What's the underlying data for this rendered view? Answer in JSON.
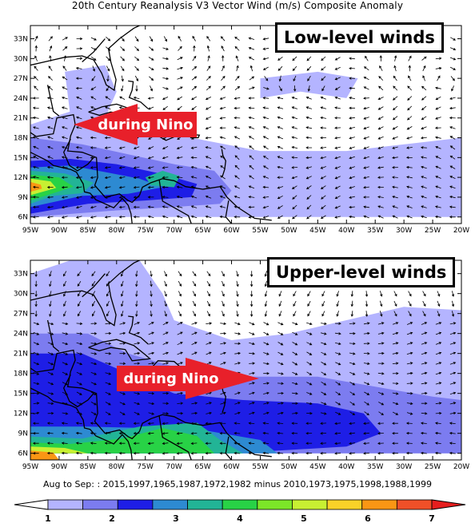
{
  "title": "20th Century Reanalysis V3 Vector Wind (m/s) Composite Anomaly",
  "panels": [
    {
      "id": "low",
      "box_label": "Low-level winds",
      "arrow_label": "during Nino",
      "arrow_direction": "west"
    },
    {
      "id": "upper",
      "box_label": "Upper-level winds",
      "arrow_label": "during Nino",
      "arrow_direction": "east"
    }
  ],
  "axes": {
    "lat_labels": [
      "33N",
      "30N",
      "27N",
      "24N",
      "21N",
      "18N",
      "15N",
      "12N",
      "9N",
      "6N"
    ],
    "lat_values": [
      33,
      30,
      27,
      24,
      21,
      18,
      15,
      12,
      9,
      6
    ],
    "lon_labels": [
      "95W",
      "90W",
      "85W",
      "80W",
      "75W",
      "70W",
      "65W",
      "60W",
      "55W",
      "50W",
      "45W",
      "40W",
      "35W",
      "30W",
      "25W",
      "20W"
    ],
    "lon_values": [
      -95,
      -90,
      -85,
      -80,
      -75,
      -70,
      -65,
      -60,
      -55,
      -50,
      -45,
      -40,
      -35,
      -30,
      -25,
      -20
    ]
  },
  "footer": "Aug to Sep: : 2015,1997,1965,1987,1972,1982 minus 2010,1973,1975,1998,1988,1999",
  "colorbar": {
    "labels": [
      "1",
      "2",
      "3",
      "4",
      "5",
      "6",
      "7"
    ],
    "colors": [
      "#b4b4ff",
      "#7c7cf0",
      "#1e1ee6",
      "#2d8ad2",
      "#22b496",
      "#28d246",
      "#7ce628",
      "#c8f032",
      "#fad228",
      "#fa9614",
      "#f05028"
    ],
    "end_low": "#ffffff",
    "end_high": "#e61e1e"
  },
  "colors": {
    "arrow_fill": "#e8202a",
    "coast": "#000000"
  }
}
